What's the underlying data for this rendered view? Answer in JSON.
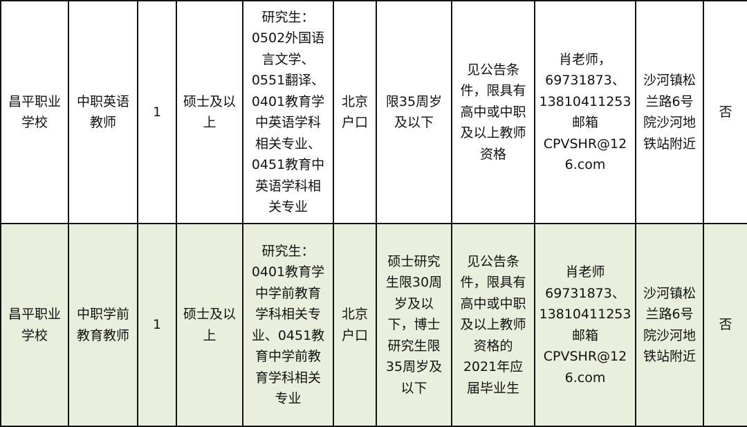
{
  "rows": [
    {
      "school": "昌平职业\n学校",
      "position": "中职英语\n教师",
      "count": "1",
      "degree": "硕士及以\n上",
      "major": "研究生：\n0502外国语\n言文学、\n0551翻译、\n0401教育学\n中英语学科\n相关专业、\n0451教育中\n英语学科相\n关专业",
      "hukou": "北京\n户口",
      "age": "限35周岁\n及以下",
      "other": "见公告条\n件，限具有\n高中或中职\n及以上教师\n资格",
      "contact": "肖老师，\n69731873、\n13810411253\n邮箱\nCPVSHR@12\n6.com",
      "address": "沙河镇松\n兰路6号\n院沙河地\n铁站附近",
      "flag": "否"
    },
    {
      "school": "昌平职业\n学校",
      "position": "中职学前\n教育教师",
      "count": "1",
      "degree": "硕士及以\n上",
      "major": "研究生：\n0401教育学\n中学前教育\n学科相关专\n业、0451教\n育中学前教\n育学科相关\n专业",
      "hukou": "北京\n户口",
      "age": "硕士研究\n生限30周\n岁及以\n下，博士\n研究生限\n35周岁及\n以下",
      "other": "见公告条\n件，限具有\n高中或中职\n及以上教师\n资格的\n2021年应\n届毕业生",
      "contact": "肖老师\n69731873、\n13810411253\n邮箱\nCPVSHR@12\n6.com",
      "address": "沙河镇松\n兰路6号\n院沙河地\n铁站附近",
      "flag": "否"
    }
  ],
  "colors": {
    "row_alt_bg": "#eaeedc",
    "border": "#111111"
  }
}
